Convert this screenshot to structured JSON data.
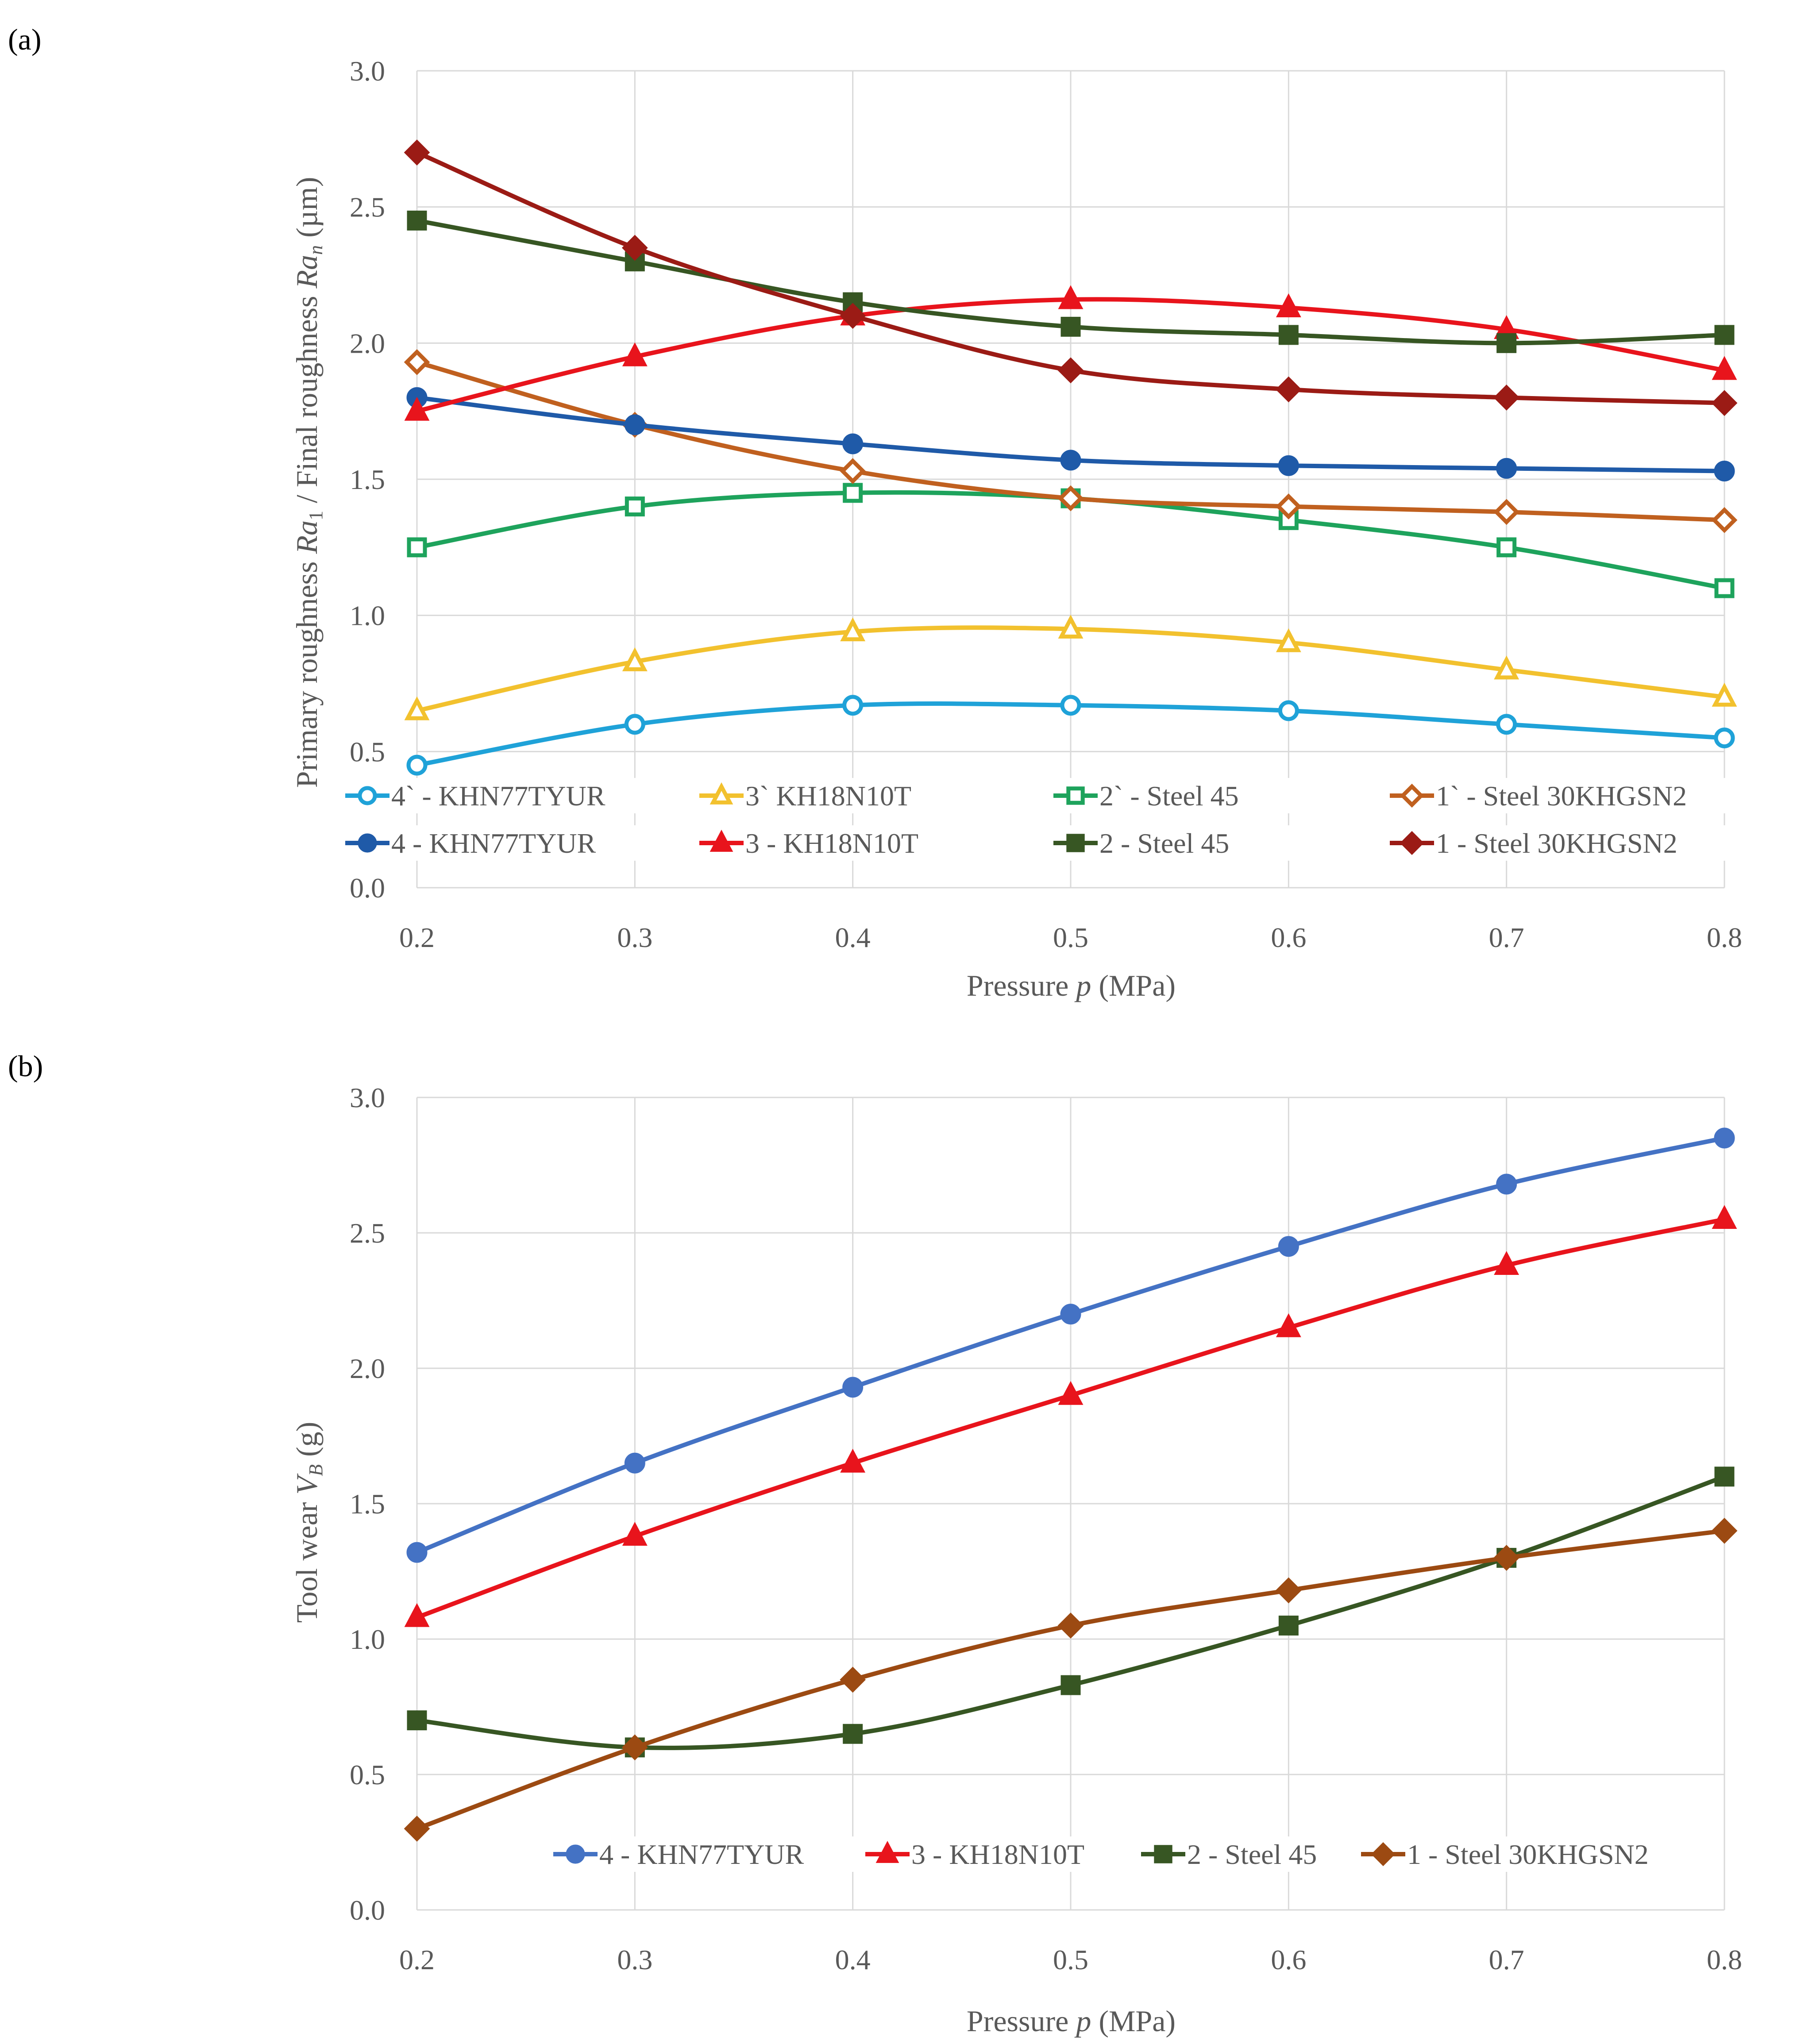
{
  "panels": [
    "(a)",
    "(b)"
  ],
  "chart_data": [
    {
      "type": "line",
      "panel_label": "(a)",
      "xlabel": "Pressure p (MPa)",
      "ylabel": "Primary roughness Ra1 / Final roughness Ran (µm)",
      "x": [
        0.2,
        0.3,
        0.4,
        0.5,
        0.6,
        0.7,
        0.8
      ],
      "x_ticks": [
        "0.2",
        "0.3",
        "0.4",
        "0.5",
        "0.6",
        "0.7",
        "0.8"
      ],
      "ylim": [
        0,
        3
      ],
      "y_ticks": [
        "0.0",
        "0.5",
        "1.0",
        "1.5",
        "2.0",
        "2.5",
        "3.0"
      ],
      "grid": true,
      "legend_position": "bottom",
      "series": [
        {
          "name": "4` - KHN77TYUR",
          "color": "#1fa2d8",
          "marker": "circle",
          "filled": false,
          "values": [
            0.45,
            0.6,
            0.67,
            0.67,
            0.65,
            0.6,
            0.55
          ]
        },
        {
          "name": "3` KH18N10T",
          "color": "#f2c12e",
          "marker": "triangle",
          "filled": false,
          "values": [
            0.65,
            0.83,
            0.94,
            0.95,
            0.9,
            0.8,
            0.7
          ]
        },
        {
          "name": "2` - Steel 45",
          "color": "#1ea35c",
          "marker": "square",
          "filled": false,
          "values": [
            1.25,
            1.4,
            1.45,
            1.43,
            1.35,
            1.25,
            1.1
          ]
        },
        {
          "name": "1` - Steel 30KHGSN2",
          "color": "#c0601f",
          "marker": "diamond",
          "filled": false,
          "values": [
            1.93,
            1.7,
            1.53,
            1.43,
            1.4,
            1.38,
            1.35
          ]
        },
        {
          "name": "4 - KHN77TYUR",
          "color": "#1f5aa8",
          "marker": "circle",
          "filled": true,
          "values": [
            1.8,
            1.7,
            1.63,
            1.57,
            1.55,
            1.54,
            1.53
          ]
        },
        {
          "name": "3 - KH18N10T",
          "color": "#e8141c",
          "marker": "triangle",
          "filled": true,
          "values": [
            1.75,
            1.95,
            2.1,
            2.16,
            2.13,
            2.05,
            1.9
          ]
        },
        {
          "name": "2 - Steel 45",
          "color": "#375623",
          "marker": "square",
          "filled": true,
          "values": [
            2.45,
            2.3,
            2.15,
            2.06,
            2.03,
            2.0,
            2.03
          ]
        },
        {
          "name": "1 - Steel 30KHGSN2",
          "color": "#9b1b15",
          "marker": "diamond",
          "filled": true,
          "values": [
            2.7,
            2.35,
            2.1,
            1.9,
            1.83,
            1.8,
            1.78
          ]
        }
      ]
    },
    {
      "type": "line",
      "panel_label": "(b)",
      "xlabel": "Pressure p (MPa)",
      "ylabel": "Tool wear VB (g)",
      "x": [
        0.2,
        0.3,
        0.4,
        0.5,
        0.6,
        0.7,
        0.8
      ],
      "x_ticks": [
        "0.2",
        "0.3",
        "0.4",
        "0.5",
        "0.6",
        "0.7",
        "0.8"
      ],
      "ylim": [
        0,
        3
      ],
      "y_ticks": [
        "0.0",
        "0.5",
        "1.0",
        "1.5",
        "2.0",
        "2.5",
        "3.0"
      ],
      "grid": true,
      "legend_position": "bottom",
      "series": [
        {
          "name": "4 - KHN77TYUR",
          "color": "#4472c4",
          "marker": "circle",
          "filled": true,
          "values": [
            1.32,
            1.65,
            1.93,
            2.2,
            2.45,
            2.68,
            2.85
          ]
        },
        {
          "name": "3 - KH18N10T",
          "color": "#e8141c",
          "marker": "triangle",
          "filled": true,
          "values": [
            1.08,
            1.38,
            1.65,
            1.9,
            2.15,
            2.38,
            2.55
          ]
        },
        {
          "name": "2 - Steel 45",
          "color": "#375623",
          "marker": "square",
          "filled": true,
          "values": [
            0.7,
            0.6,
            0.65,
            0.83,
            1.05,
            1.3,
            1.6
          ]
        },
        {
          "name": "1 - Steel 30KHGSN2",
          "color": "#9c4a12",
          "marker": "diamond",
          "filled": true,
          "values": [
            0.3,
            0.6,
            0.85,
            1.05,
            1.18,
            1.3,
            1.4
          ]
        }
      ]
    }
  ]
}
